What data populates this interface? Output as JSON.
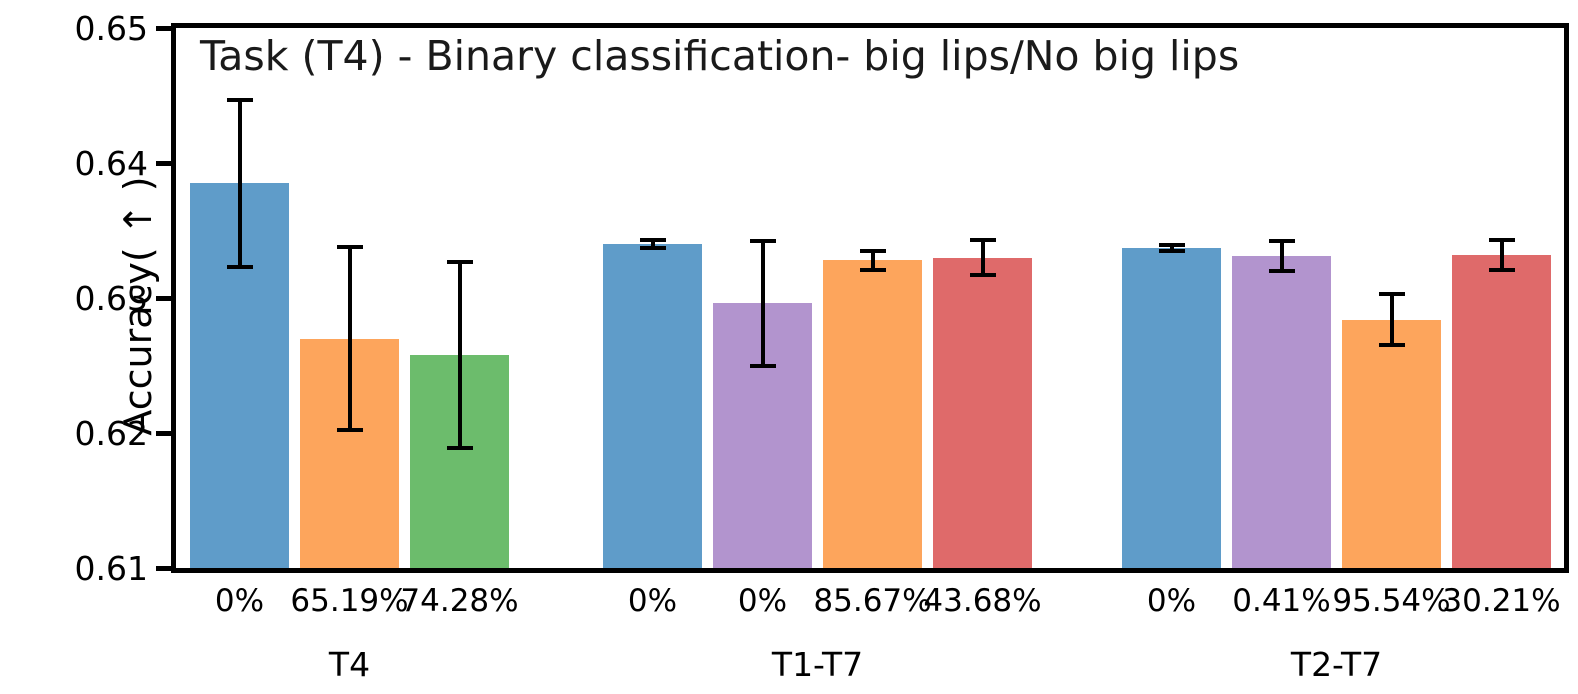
{
  "figure": {
    "background": "#ffffff",
    "text_color": "#000000",
    "axis_color": "#000000"
  },
  "chart_data": {
    "type": "bar",
    "title": "Task (T4) - Binary classification- big lips/No big lips",
    "xlabel": "",
    "ylabel": "Accuracy( ↑ )",
    "ylim": [
      0.61,
      0.65
    ],
    "yticks": [
      "0.61",
      "0.62",
      "0.63",
      "0.64",
      "0.65"
    ],
    "grid": false,
    "legend_position": "none",
    "error_bars": true,
    "palette": {
      "blue": "#5F9CC9",
      "orange": "#FDA55C",
      "green": "#6CBC6C",
      "purple": "#B294CE",
      "red": "#DF6A6A"
    },
    "groups": [
      {
        "label": "T4",
        "bars": [
          {
            "pct_label": "0%",
            "value": 0.6385,
            "err": 0.0062,
            "color_name": "blue",
            "color": "#5F9CC9"
          },
          {
            "pct_label": "65.19%",
            "value": 0.627,
            "err": 0.0068,
            "color_name": "orange",
            "color": "#FDA55C"
          },
          {
            "pct_label": "74.28%",
            "value": 0.6258,
            "err": 0.0069,
            "color_name": "green",
            "color": "#6CBC6C"
          }
        ]
      },
      {
        "label": "T1-T7",
        "bars": [
          {
            "pct_label": "0%",
            "value": 0.634,
            "err": 0.0003,
            "color_name": "blue",
            "color": "#5F9CC9"
          },
          {
            "pct_label": "0%",
            "value": 0.6296,
            "err": 0.0046,
            "color_name": "purple",
            "color": "#B294CE"
          },
          {
            "pct_label": "85.67%",
            "value": 0.6328,
            "err": 0.0007,
            "color_name": "orange",
            "color": "#FDA55C"
          },
          {
            "pct_label": "43.68%",
            "value": 0.633,
            "err": 0.0013,
            "color_name": "red",
            "color": "#DF6A6A"
          }
        ]
      },
      {
        "label": "T2-T7",
        "bars": [
          {
            "pct_label": "0%",
            "value": 0.6337,
            "err": 0.0002,
            "color_name": "blue",
            "color": "#5F9CC9"
          },
          {
            "pct_label": "0.41%",
            "value": 0.6331,
            "err": 0.0011,
            "color_name": "purple",
            "color": "#B294CE"
          },
          {
            "pct_label": "95.54%",
            "value": 0.6284,
            "err": 0.0019,
            "color_name": "orange",
            "color": "#FDA55C"
          },
          {
            "pct_label": "30.21%",
            "value": 0.6332,
            "err": 0.0011,
            "color_name": "red",
            "color": "#DF6A6A"
          }
        ]
      }
    ]
  }
}
